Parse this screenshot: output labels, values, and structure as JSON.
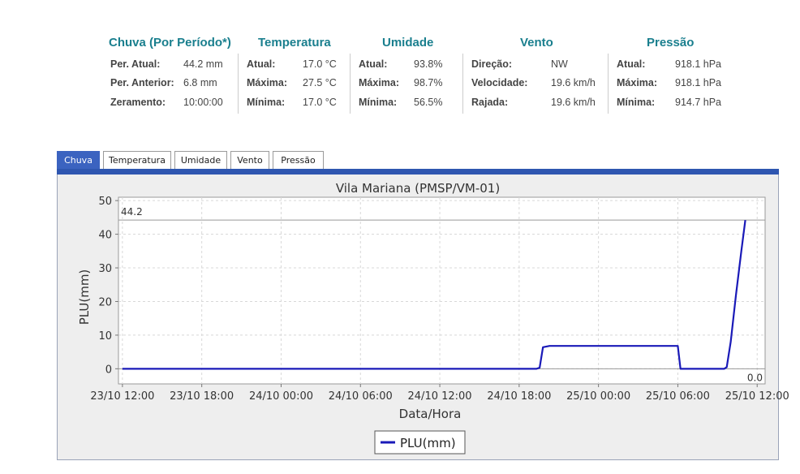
{
  "summary": {
    "chuva": {
      "title": "Chuva (Por Período*)",
      "rows": [
        {
          "label": "Per. Atual:",
          "value": "44.2 mm"
        },
        {
          "label": "Per. Anterior:",
          "value": "6.8 mm"
        },
        {
          "label": "Zeramento:",
          "value": "10:00:00"
        }
      ]
    },
    "temperatura": {
      "title": "Temperatura",
      "rows": [
        {
          "label": "Atual:",
          "value": "17.0 °C"
        },
        {
          "label": "Máxima:",
          "value": "27.5 °C"
        },
        {
          "label": "Mínima:",
          "value": "17.0 °C"
        }
      ]
    },
    "umidade": {
      "title": "Umidade",
      "rows": [
        {
          "label": "Atual:",
          "value": "93.8%"
        },
        {
          "label": "Máxima:",
          "value": "98.7%"
        },
        {
          "label": "Mínima:",
          "value": "56.5%"
        }
      ]
    },
    "vento": {
      "title": "Vento",
      "rows": [
        {
          "label": "Direção:",
          "value": "NW"
        },
        {
          "label": "Velocidade:",
          "value": "19.6 km/h"
        },
        {
          "label": "Rajada:",
          "value": "19.6 km/h"
        }
      ]
    },
    "pressao": {
      "title": "Pressão",
      "rows": [
        {
          "label": "Atual:",
          "value": "918.1 hPa"
        },
        {
          "label": "Máxima:",
          "value": "918.1 hPa"
        },
        {
          "label": "Mínima:",
          "value": "914.7 hPa"
        }
      ]
    }
  },
  "tabs": [
    {
      "label": "Chuva",
      "active": true
    },
    {
      "label": "Temperatura",
      "active": false
    },
    {
      "label": "Umidade",
      "active": false
    },
    {
      "label": "Vento",
      "active": false
    },
    {
      "label": "Pressão",
      "active": false
    }
  ],
  "colors": {
    "accent": "#1a7f8e",
    "tab_active": "#3b63c0",
    "series": "#1a1ab8"
  },
  "chart_data": {
    "type": "line",
    "title": "Vila Mariana (PMSP/VM-01)",
    "xlabel": "Data/Hora",
    "ylabel": "PLU(mm)",
    "x_ticks": [
      "23/10 12:00",
      "23/10 18:00",
      "24/10 00:00",
      "24/10 06:00",
      "24/10 12:00",
      "24/10 18:00",
      "25/10 00:00",
      "25/10 06:00",
      "25/10 12:00"
    ],
    "y_ticks": [
      "0",
      "10",
      "20",
      "30",
      "40",
      "50"
    ],
    "ylim": [
      -4.5,
      51
    ],
    "xlim_hours": [
      -0.3,
      48.6
    ],
    "grid": true,
    "legend": {
      "position": "bottom",
      "entries": [
        "PLU(mm)"
      ]
    },
    "annotations": {
      "max": "44.2",
      "min": "0.0"
    },
    "series": [
      {
        "name": "PLU(mm)",
        "x_hours": [
          0,
          31.3,
          31.55,
          31.8,
          32.3,
          33.0,
          42.0,
          42.2,
          45.5,
          45.7,
          46.0,
          46.4,
          46.8,
          47.1
        ],
        "values": [
          0,
          0,
          0.3,
          6.4,
          6.8,
          6.8,
          6.8,
          0,
          0,
          0.5,
          8.0,
          22.0,
          35.0,
          44.2
        ]
      }
    ]
  }
}
